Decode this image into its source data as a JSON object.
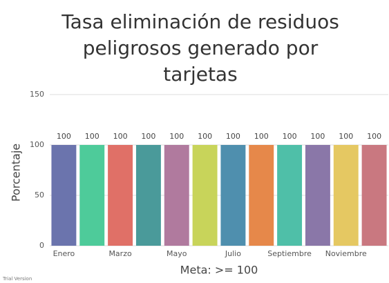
{
  "chart_data": {
    "type": "bar",
    "title": [
      "Tasa eliminación de residuos",
      "peligrosos generado por",
      "tarjetas"
    ],
    "ylabel": "Porcentaje",
    "xlabel": "Meta: >= 100",
    "watermark": "Trial Version",
    "categories": [
      "Enero",
      null,
      "Marzo",
      null,
      "Mayo",
      null,
      "Julio",
      null,
      "Septiembre",
      null,
      "Noviembre",
      null
    ],
    "values": [
      100,
      100,
      100,
      100,
      100,
      100,
      100,
      100,
      100,
      100,
      100,
      100
    ],
    "colors": [
      "#6b74ad",
      "#4ecb9a",
      "#e07067",
      "#4a9a9a",
      "#b07a9e",
      "#c8d45a",
      "#4f8fae",
      "#e6884a",
      "#4fbfa8",
      "#8a77a8",
      "#e5c862",
      "#c97880"
    ],
    "ylim": [
      0,
      150
    ],
    "yticks": [
      0,
      50,
      100,
      150
    ],
    "grid": true
  }
}
